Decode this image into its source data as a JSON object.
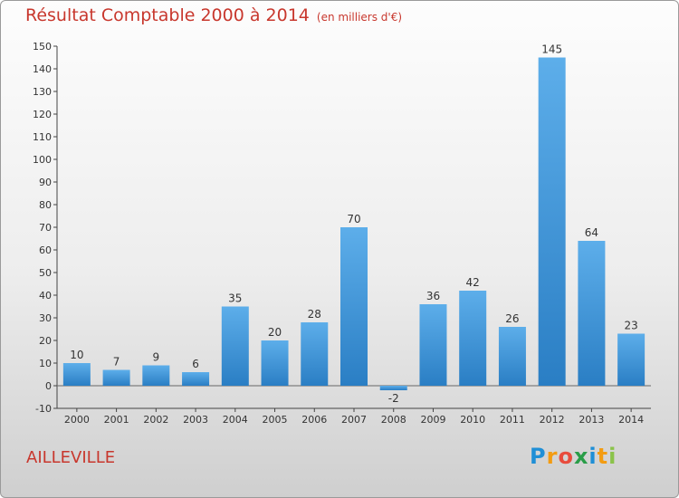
{
  "header": {
    "title": "Résultat Comptable 2000 à 2014",
    "subtitle": "(en milliers d'€)"
  },
  "footer": {
    "commune": "AILLEVILLE"
  },
  "logo": {
    "letters": [
      "P",
      "r",
      "o",
      "x",
      "i",
      "t",
      "i"
    ],
    "colors": [
      "#1f8fd6",
      "#f39c12",
      "#e84c3d",
      "#2a9d48",
      "#1f8fd6",
      "#f39c12",
      "#8bc34a"
    ]
  },
  "colors": {
    "bar_top": "#5daeea",
    "bar_bottom": "#2a7ec4",
    "title": "#c8372d"
  },
  "chart_data": {
    "type": "bar",
    "title": "Résultat Comptable 2000 à 2014",
    "xlabel": "",
    "ylabel": "",
    "ylim": [
      -10,
      150
    ],
    "yticks": [
      -10,
      0,
      10,
      20,
      30,
      40,
      50,
      60,
      70,
      80,
      90,
      100,
      110,
      120,
      130,
      140,
      150
    ],
    "grid": false,
    "categories": [
      "2000",
      "2001",
      "2002",
      "2003",
      "2004",
      "2005",
      "2006",
      "2007",
      "2008",
      "2009",
      "2010",
      "2011",
      "2012",
      "2013",
      "2014"
    ],
    "values": [
      10,
      7,
      9,
      6,
      35,
      20,
      28,
      70,
      -2,
      36,
      42,
      26,
      145,
      64,
      23
    ]
  }
}
